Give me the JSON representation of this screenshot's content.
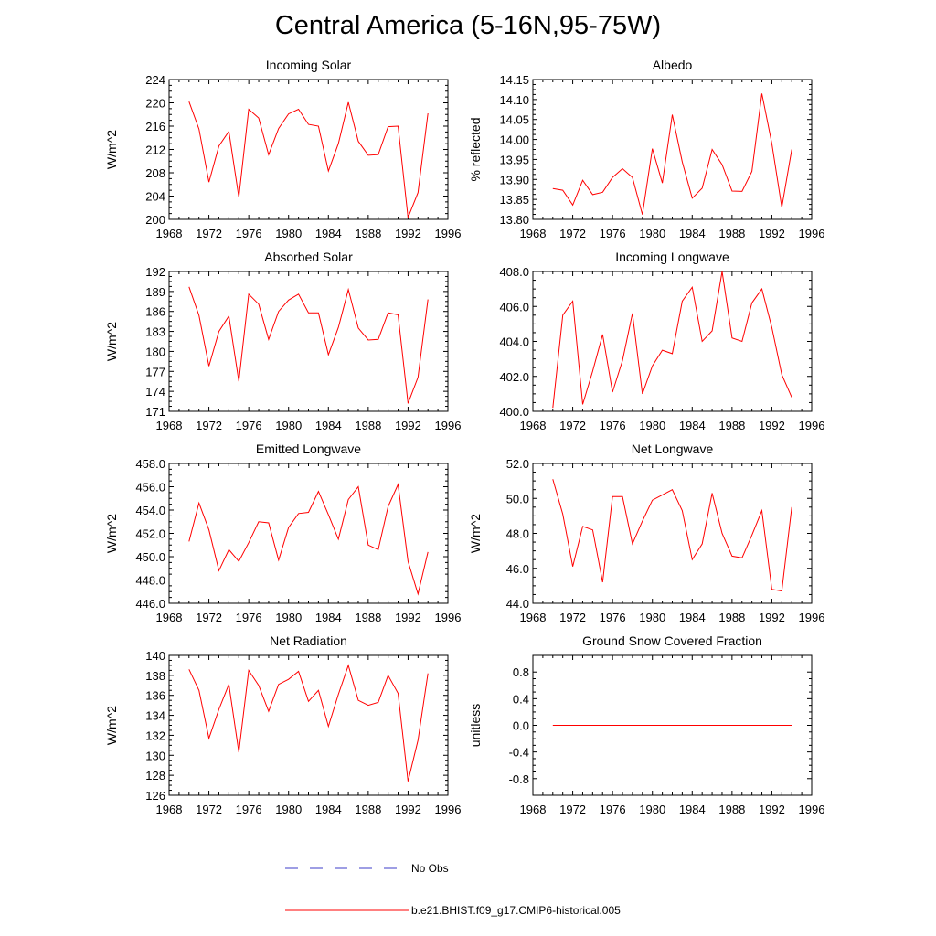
{
  "title": "Central America (5-16N,95-75W)",
  "colors": {
    "model": "#ff0000",
    "obs": "#3c3cc8",
    "axis": "#000000"
  },
  "legend": {
    "obs_label": "No Obs",
    "model_label": "b.e21.BHIST.f09_g17.CMIP6-historical.005"
  },
  "chart_data": [
    {
      "type": "line",
      "title": "Incoming Solar",
      "xlabel": "",
      "ylabel": "W/m^2",
      "xlim": [
        1968,
        1996
      ],
      "ylim": [
        200,
        224
      ],
      "xticks": [
        "1968",
        "1972",
        "1976",
        "1980",
        "1984",
        "1988",
        "1992",
        "1996"
      ],
      "yticks": [
        "200",
        "204",
        "208",
        "212",
        "216",
        "220",
        "224"
      ],
      "x": [
        1970,
        1971,
        1972,
        1973,
        1974,
        1975,
        1976,
        1977,
        1978,
        1979,
        1980,
        1981,
        1982,
        1983,
        1984,
        1985,
        1986,
        1987,
        1988,
        1989,
        1990,
        1991,
        1992,
        1993,
        1994
      ],
      "series": [
        {
          "name": "b.e21.BHIST.f09_g17.CMIP6-historical.005",
          "values": [
            220.2,
            215.5,
            206.4,
            212.6,
            215.1,
            203.8,
            218.9,
            217.4,
            211.1,
            215.6,
            218.1,
            218.9,
            216.3,
            216.0,
            208.3,
            213.0,
            220.1,
            213.4,
            211.0,
            211.1,
            215.9,
            216.0,
            200.3,
            204.6,
            218.2
          ]
        }
      ]
    },
    {
      "type": "line",
      "title": "Albedo",
      "xlabel": "",
      "ylabel": "% reflected",
      "xlim": [
        1968,
        1996
      ],
      "ylim": [
        13.8,
        14.15
      ],
      "xticks": [
        "1968",
        "1972",
        "1976",
        "1980",
        "1984",
        "1988",
        "1992",
        "1996"
      ],
      "yticks": [
        "13.80",
        "13.85",
        "13.90",
        "13.95",
        "14.00",
        "14.05",
        "14.10",
        "14.15"
      ],
      "x": [
        1970,
        1971,
        1972,
        1973,
        1974,
        1975,
        1976,
        1977,
        1978,
        1979,
        1980,
        1981,
        1982,
        1983,
        1984,
        1985,
        1986,
        1987,
        1988,
        1989,
        1990,
        1991,
        1992,
        1993,
        1994
      ],
      "series": [
        {
          "name": "b.e21.BHIST.f09_g17.CMIP6-historical.005",
          "values": [
            13.877,
            13.873,
            13.836,
            13.898,
            13.862,
            13.868,
            13.905,
            13.927,
            13.905,
            13.812,
            13.977,
            13.891,
            14.062,
            13.944,
            13.853,
            13.878,
            13.975,
            13.937,
            13.871,
            13.87,
            13.92,
            14.115,
            13.99,
            13.83,
            13.975
          ]
        }
      ]
    },
    {
      "type": "line",
      "title": "Absorbed Solar",
      "xlabel": "",
      "ylabel": "W/m^2",
      "xlim": [
        1968,
        1996
      ],
      "ylim": [
        171,
        192
      ],
      "xticks": [
        "1968",
        "1972",
        "1976",
        "1980",
        "1984",
        "1988",
        "1992",
        "1996"
      ],
      "yticks": [
        "171",
        "174",
        "177",
        "180",
        "183",
        "186",
        "189",
        "192"
      ],
      "x": [
        1970,
        1971,
        1972,
        1973,
        1974,
        1975,
        1976,
        1977,
        1978,
        1979,
        1980,
        1981,
        1982,
        1983,
        1984,
        1985,
        1986,
        1987,
        1988,
        1989,
        1990,
        1991,
        1992,
        1993,
        1994
      ],
      "series": [
        {
          "name": "b.e21.BHIST.f09_g17.CMIP6-historical.005",
          "values": [
            189.7,
            185.4,
            177.8,
            183.0,
            185.3,
            175.5,
            188.6,
            187.1,
            181.8,
            186.0,
            187.7,
            188.6,
            185.8,
            185.8,
            179.5,
            183.6,
            189.3,
            183.5,
            181.7,
            181.8,
            185.8,
            185.5,
            172.2,
            176.1,
            187.8
          ]
        }
      ]
    },
    {
      "type": "line",
      "title": "Incoming Longwave",
      "xlabel": "",
      "ylabel": "",
      "xlim": [
        1968,
        1996
      ],
      "ylim": [
        400,
        408
      ],
      "xticks": [
        "1968",
        "1972",
        "1976",
        "1980",
        "1984",
        "1988",
        "1992",
        "1996"
      ],
      "yticks": [
        "400.0",
        "402.0",
        "404.0",
        "406.0",
        "408.0"
      ],
      "x": [
        1970,
        1971,
        1972,
        1973,
        1974,
        1975,
        1976,
        1977,
        1978,
        1979,
        1980,
        1981,
        1982,
        1983,
        1984,
        1985,
        1986,
        1987,
        1988,
        1989,
        1990,
        1991,
        1992,
        1993,
        1994
      ],
      "series": [
        {
          "name": "b.e21.BHIST.f09_g17.CMIP6-historical.005",
          "values": [
            400.2,
            405.5,
            406.3,
            400.4,
            402.3,
            404.4,
            401.1,
            402.9,
            405.6,
            401.0,
            402.6,
            403.5,
            403.3,
            406.3,
            407.1,
            404.0,
            404.6,
            408.0,
            404.2,
            404.0,
            406.2,
            407.0,
            404.8,
            402.1,
            400.8
          ]
        }
      ]
    },
    {
      "type": "line",
      "title": "Emitted Longwave",
      "xlabel": "",
      "ylabel": "W/m^2",
      "xlim": [
        1968,
        1996
      ],
      "ylim": [
        446,
        458
      ],
      "xticks": [
        "1968",
        "1972",
        "1976",
        "1980",
        "1984",
        "1988",
        "1992",
        "1996"
      ],
      "yticks": [
        "446.0",
        "448.0",
        "450.0",
        "452.0",
        "454.0",
        "456.0",
        "458.0"
      ],
      "x": [
        1970,
        1971,
        1972,
        1973,
        1974,
        1975,
        1976,
        1977,
        1978,
        1979,
        1980,
        1981,
        1982,
        1983,
        1984,
        1985,
        1986,
        1987,
        1988,
        1989,
        1990,
        1991,
        1992,
        1993,
        1994
      ],
      "series": [
        {
          "name": "b.e21.BHIST.f09_g17.CMIP6-historical.005",
          "values": [
            451.3,
            454.6,
            452.3,
            448.8,
            450.6,
            449.6,
            451.2,
            453.0,
            452.9,
            449.7,
            452.5,
            453.7,
            453.8,
            455.6,
            453.6,
            451.5,
            454.9,
            456.0,
            451.0,
            450.6,
            454.3,
            456.2,
            449.6,
            446.8,
            450.4
          ]
        }
      ]
    },
    {
      "type": "line",
      "title": "Net Longwave",
      "xlabel": "",
      "ylabel": "W/m^2",
      "xlim": [
        1968,
        1996
      ],
      "ylim": [
        44,
        52
      ],
      "xticks": [
        "1968",
        "1972",
        "1976",
        "1980",
        "1984",
        "1988",
        "1992",
        "1996"
      ],
      "yticks": [
        "44.0",
        "46.0",
        "48.0",
        "50.0",
        "52.0"
      ],
      "x": [
        1970,
        1971,
        1972,
        1973,
        1974,
        1975,
        1976,
        1977,
        1978,
        1979,
        1980,
        1981,
        1982,
        1983,
        1984,
        1985,
        1986,
        1987,
        1988,
        1989,
        1990,
        1991,
        1992,
        1993,
        1994
      ],
      "series": [
        {
          "name": "b.e21.BHIST.f09_g17.CMIP6-historical.005",
          "values": [
            51.1,
            49.1,
            46.1,
            48.4,
            48.2,
            45.2,
            50.1,
            50.1,
            47.4,
            48.7,
            49.9,
            50.2,
            50.5,
            49.3,
            46.5,
            47.4,
            50.3,
            48.0,
            46.7,
            46.6,
            47.9,
            49.3,
            44.8,
            44.7,
            49.5
          ]
        }
      ]
    },
    {
      "type": "line",
      "title": "Net Radiation",
      "xlabel": "",
      "ylabel": "W/m^2",
      "xlim": [
        1968,
        1996
      ],
      "ylim": [
        126,
        140
      ],
      "xticks": [
        "1968",
        "1972",
        "1976",
        "1980",
        "1984",
        "1988",
        "1992",
        "1996"
      ],
      "yticks": [
        "126",
        "128",
        "130",
        "132",
        "134",
        "136",
        "138",
        "140"
      ],
      "x": [
        1970,
        1971,
        1972,
        1973,
        1974,
        1975,
        1976,
        1977,
        1978,
        1979,
        1980,
        1981,
        1982,
        1983,
        1984,
        1985,
        1986,
        1987,
        1988,
        1989,
        1990,
        1991,
        1992,
        1993,
        1994
      ],
      "series": [
        {
          "name": "b.e21.BHIST.f09_g17.CMIP6-historical.005",
          "values": [
            138.6,
            136.5,
            131.7,
            134.6,
            137.1,
            130.3,
            138.5,
            137.0,
            134.4,
            137.1,
            137.6,
            138.4,
            135.4,
            136.5,
            132.9,
            136.1,
            139.0,
            135.5,
            135.0,
            135.3,
            138.0,
            136.2,
            127.4,
            131.5,
            138.2
          ]
        }
      ]
    },
    {
      "type": "line",
      "title": "Ground Snow Covered Fraction",
      "xlabel": "",
      "ylabel": "unitless",
      "xlim": [
        1968,
        1996
      ],
      "ylim": [
        -1.05,
        1.05
      ],
      "xticks": [
        "1968",
        "1972",
        "1976",
        "1980",
        "1984",
        "1988",
        "1992",
        "1996"
      ],
      "yticks": [
        "-0.8",
        "-0.4",
        "0.0",
        "0.4",
        "0.8"
      ],
      "x": [
        1970,
        1994
      ],
      "series": [
        {
          "name": "b.e21.BHIST.f09_g17.CMIP6-historical.005",
          "values": [
            0.0,
            0.0
          ]
        }
      ]
    }
  ]
}
